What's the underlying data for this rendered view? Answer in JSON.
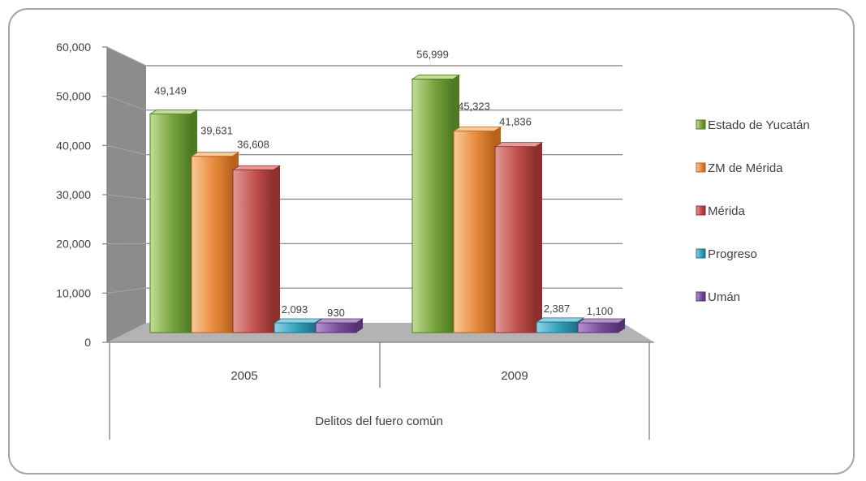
{
  "chart_data": {
    "type": "bar",
    "categories": [
      "2005",
      "2009"
    ],
    "group_label": "Delitos del fuero común",
    "series": [
      {
        "name": "Estado de Yucatán",
        "values": [
          49149,
          56999
        ],
        "labels": [
          "49,149",
          "56,999"
        ],
        "color": "#77a33c",
        "light": "#c3dd96",
        "dark": "#4d7a22"
      },
      {
        "name": "ZM de Mérida",
        "values": [
          39631,
          45323
        ],
        "labels": [
          "39,631",
          "45,323"
        ],
        "color": "#e98a3c",
        "light": "#f8c99a",
        "dark": "#b7621d"
      },
      {
        "name": "Mérida",
        "values": [
          36608,
          41836
        ],
        "labels": [
          "36,608",
          "41,836"
        ],
        "color": "#c0504d",
        "light": "#e39a98",
        "dark": "#8c2f2d"
      },
      {
        "name": "Progreso",
        "values": [
          2093,
          2387
        ],
        "labels": [
          "2,093",
          "2,387"
        ],
        "color": "#31a0bd",
        "light": "#8fd3e4",
        "dark": "#1f6f84"
      },
      {
        "name": "Umán",
        "values": [
          930,
          1100
        ],
        "labels": [
          "930",
          "1,100"
        ],
        "color": "#7a4f9e",
        "light": "#b596cf",
        "dark": "#523270"
      }
    ],
    "ylim": [
      0,
      60000
    ],
    "yticks": [
      0,
      10000,
      20000,
      30000,
      40000,
      50000,
      60000
    ],
    "ytick_labels": [
      "0",
      "10,000",
      "20,000",
      "30,000",
      "40,000",
      "50,000",
      "60,000"
    ],
    "grid": true,
    "legend_position": "right"
  }
}
